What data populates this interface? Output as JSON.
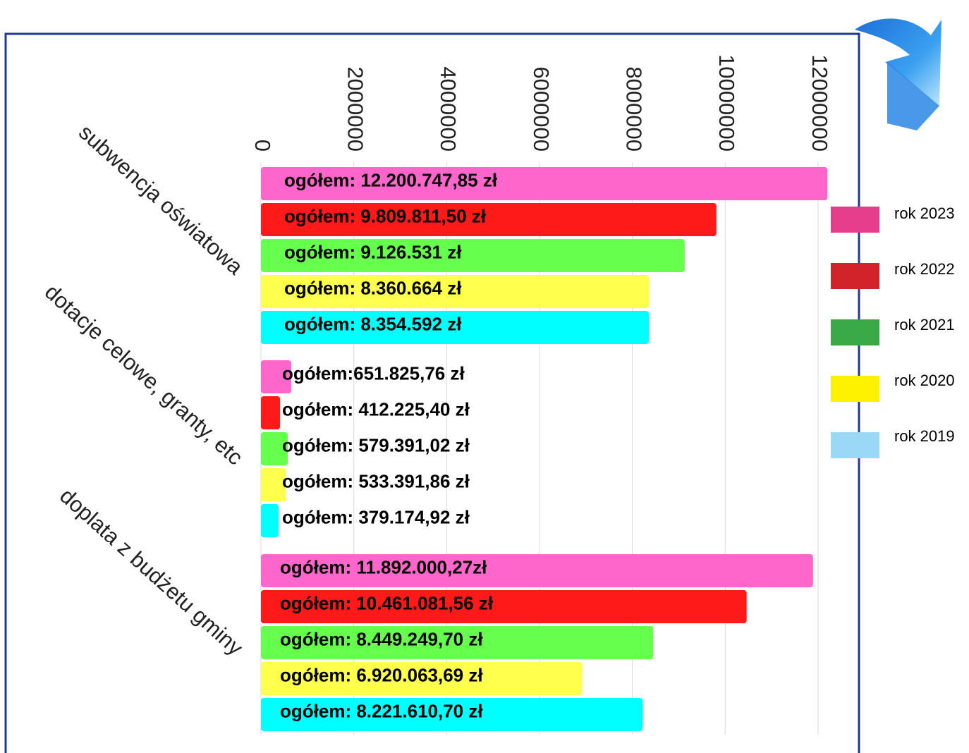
{
  "chart_data": {
    "type": "bar",
    "orientation": "horizontal",
    "categories": [
      "subwencja oświatowa",
      "dotacje celowe, granty, etc",
      "doplata z budżetu gminy"
    ],
    "series": [
      {
        "name": "rok 2023",
        "color": "#ff66cc",
        "legend_color": "#e63e8c",
        "values": [
          12200747.85,
          651825.76,
          11892000.27
        ],
        "value_labels": [
          "ogółem: 12.200.747,85 zł",
          "ogółem:651.825,76 zł",
          "ogółem: 11.892.000,27zł"
        ]
      },
      {
        "name": "rok 2022",
        "color": "#ff1a1a",
        "legend_color": "#d2232a",
        "values": [
          9809811.5,
          412225.4,
          10461081.56
        ],
        "value_labels": [
          "ogółem: 9.809.811,50 zł",
          "ogółem: 412.225,40 zł",
          "ogółem: 10.461.081,56 zł"
        ]
      },
      {
        "name": "rok 2021",
        "color": "#66ff4d",
        "legend_color": "#3aaa48",
        "values": [
          9126531,
          579391.02,
          8449249.7
        ],
        "value_labels": [
          "ogółem: 9.126.531 zł",
          "ogółem: 579.391,02 zł",
          "ogółem: 8.449.249,70 zł"
        ]
      },
      {
        "name": "rok 2020",
        "color": "#ffff4d",
        "legend_color": "#fff200",
        "values": [
          8360664,
          533391.86,
          6920063.69
        ],
        "value_labels": [
          "ogółem: 8.360.664 zł",
          "ogółem: 533.391,86 zł",
          "ogółem: 6.920.063,69 zł"
        ]
      },
      {
        "name": "rok 2019",
        "color": "#00ffff",
        "legend_color": "#9ad8f5",
        "values": [
          8354592,
          379174.92,
          8221610.7
        ],
        "value_labels": [
          "ogółem: 8.354.592 zł",
          "ogółem: 379.174,92 zł",
          "ogółem: 8.221.610,70 zł"
        ]
      }
    ],
    "xlim": [
      0,
      12000000
    ],
    "xticks": [
      0,
      2000000,
      4000000,
      6000000,
      8000000,
      10000000,
      12000000
    ],
    "grid": true,
    "legend": "right"
  }
}
